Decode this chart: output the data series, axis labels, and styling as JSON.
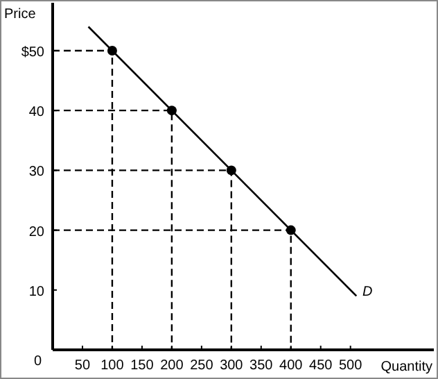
{
  "chart_data": {
    "type": "line",
    "xlabel": "Quantity",
    "ylabel": "Price",
    "xlim": [
      0,
      640
    ],
    "ylim": [
      0,
      58
    ],
    "xticks": [
      50,
      100,
      150,
      200,
      250,
      300,
      350,
      400,
      450,
      500
    ],
    "yticks": [
      0,
      10,
      20,
      30,
      40,
      {
        "value": 50,
        "label": "$50"
      }
    ],
    "grid": false,
    "annotations": [
      {
        "text": "D",
        "x": 520,
        "y": 9
      }
    ],
    "series": [
      {
        "color": "#000000",
        "x": [
          60,
          510
        ],
        "values": [
          54,
          9
        ],
        "line_style": "solid",
        "marker": "none"
      },
      {
        "type": "scatter",
        "color": "#000000",
        "x": [
          100,
          200,
          300,
          400
        ],
        "values": [
          50,
          40,
          30,
          20
        ],
        "marker": "circle"
      },
      {
        "type": "line",
        "color": "#000000",
        "x": [
          0,
          100,
          100
        ],
        "values": [
          50,
          50,
          0
        ],
        "line_style": "dashed",
        "marker": "none"
      },
      {
        "type": "line",
        "color": "#000000",
        "x": [
          0,
          200,
          200
        ],
        "values": [
          40,
          40,
          0
        ],
        "line_style": "dashed",
        "marker": "none"
      },
      {
        "type": "line",
        "color": "#000000",
        "x": [
          0,
          300,
          300
        ],
        "values": [
          30,
          30,
          0
        ],
        "line_style": "dashed",
        "marker": "none"
      },
      {
        "type": "line",
        "color": "#000000",
        "x": [
          0,
          400,
          400
        ],
        "values": [
          20,
          20,
          0
        ],
        "line_style": "dashed",
        "marker": "none"
      }
    ]
  }
}
